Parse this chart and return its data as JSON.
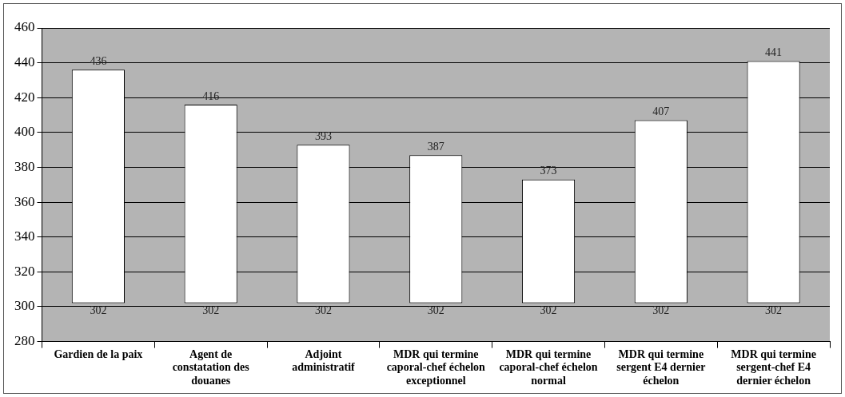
{
  "chart_data": {
    "type": "bar",
    "categories": [
      "Gardien de la paix",
      "Agent de constatation des douanes",
      "Adjoint administratif",
      "MDR qui termine caporal-chef échelon exceptionnel",
      "MDR qui termine caporal-chef échelon normal",
      "MDR qui termine sergent E4 dernier échelon",
      "MDR qui termine sergent-chef E4 dernier échelon"
    ],
    "base": [
      302,
      302,
      302,
      302,
      302,
      302,
      302
    ],
    "values": [
      134,
      114,
      91,
      85,
      71,
      105,
      139
    ],
    "value_labels": [
      "436",
      "416",
      "393",
      "387",
      "373",
      "407",
      "441"
    ],
    "color": "#ffffff",
    "ylim": [
      280,
      460
    ],
    "yticks": [
      280,
      300,
      320,
      340,
      360,
      380,
      400,
      420,
      440,
      460
    ],
    "grid": "y",
    "annotations": [
      {
        "text": "302",
        "x": "Gardien de la paix",
        "y": 302
      },
      {
        "text": "302",
        "x": "Agent de constatation des douanes",
        "y": 302
      },
      {
        "text": "302",
        "x": "Adjoint administratif",
        "y": 302
      },
      {
        "text": "302",
        "x": "MDR qui termine caporal-chef échelon exceptionnel",
        "y": 302
      },
      {
        "text": "302",
        "x": "MDR qui termine caporal-chef échelon normal",
        "y": 302
      },
      {
        "text": "302",
        "x": "MDR qui termine sergent E4 dernier échelon",
        "y": 302
      },
      {
        "text": "302",
        "x": "MDR qui termine sergent-chef E4 dernier échelon",
        "y": 302
      }
    ]
  }
}
